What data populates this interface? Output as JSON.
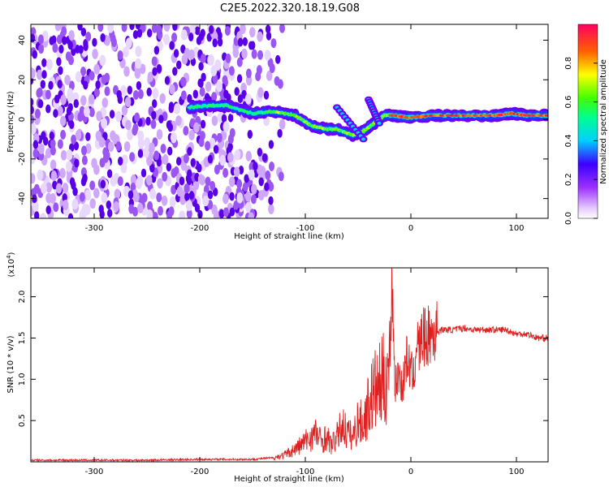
{
  "figure_title": "C2E5.2022.320.18.19.G08",
  "chart_data": [
    {
      "type": "heatmap",
      "title": "C2E5.2022.320.18.19.G08",
      "xlabel": "Height of straight line (km)",
      "ylabel": "Frequency (Hz)",
      "xlim": [
        -360,
        130
      ],
      "ylim": [
        -50,
        48
      ],
      "xticks": [
        -300,
        -200,
        -100,
        0,
        100
      ],
      "yticks": [
        -40,
        -20,
        0,
        20,
        40
      ],
      "colorbar": {
        "label": "Normalized spectral amplitude",
        "range": [
          0.0,
          1.0
        ],
        "ticks": [
          0.0,
          0.2,
          0.4,
          0.6,
          0.8
        ]
      },
      "ridge": {
        "x": [
          -210,
          -190,
          -175,
          -150,
          -130,
          -110,
          -95,
          -80,
          -70,
          -55,
          -45,
          -35,
          -25,
          -15,
          -5,
          0,
          20,
          50,
          80,
          95,
          110,
          130
        ],
        "y": [
          6,
          7,
          7,
          3,
          4,
          2,
          -3,
          -5,
          -5,
          -8,
          -6,
          -2,
          2,
          2,
          1,
          1,
          2,
          2,
          2,
          3,
          2,
          2
        ]
      },
      "noise_region": {
        "x_start": -360,
        "x_end": -130
      }
    },
    {
      "type": "line",
      "xlabel": "Height of straight line (km)",
      "ylabel": "SNR (10 * v/v)",
      "y_multiplier": "(x10^4)",
      "xlim": [
        -360,
        130
      ],
      "ylim": [
        0,
        2.35
      ],
      "xticks": [
        -300,
        -200,
        -100,
        0,
        100
      ],
      "yticks": [
        0.5,
        1.0,
        1.5,
        2.0
      ],
      "grid": false,
      "series": [
        {
          "color": "#e02020",
          "x": [
            -360,
            -300,
            -250,
            -200,
            -150,
            -130,
            -120,
            -110,
            -100,
            -95,
            -90,
            -85,
            -80,
            -75,
            -70,
            -65,
            -60,
            -55,
            -50,
            -45,
            -40,
            -35,
            -30,
            -25,
            -20,
            -18,
            -15,
            -12,
            -10,
            -8,
            -5,
            -2,
            0,
            3,
            5,
            8,
            10,
            15,
            20,
            25,
            30,
            40,
            50,
            60,
            70,
            80,
            90,
            100,
            110,
            120,
            130
          ],
          "y": [
            0.02,
            0.02,
            0.02,
            0.03,
            0.03,
            0.05,
            0.08,
            0.15,
            0.25,
            0.3,
            0.35,
            0.25,
            0.3,
            0.2,
            0.3,
            0.45,
            0.35,
            0.3,
            0.5,
            0.45,
            0.7,
            0.85,
            0.9,
            1.0,
            1.15,
            2.3,
            0.9,
            1.05,
            1.05,
            0.85,
            1.25,
            1.2,
            1.1,
            1.0,
            1.5,
            1.35,
            1.5,
            1.5,
            1.55,
            1.58,
            1.6,
            1.6,
            1.62,
            1.6,
            1.6,
            1.6,
            1.6,
            1.55,
            1.55,
            1.5,
            1.5
          ]
        }
      ]
    }
  ]
}
